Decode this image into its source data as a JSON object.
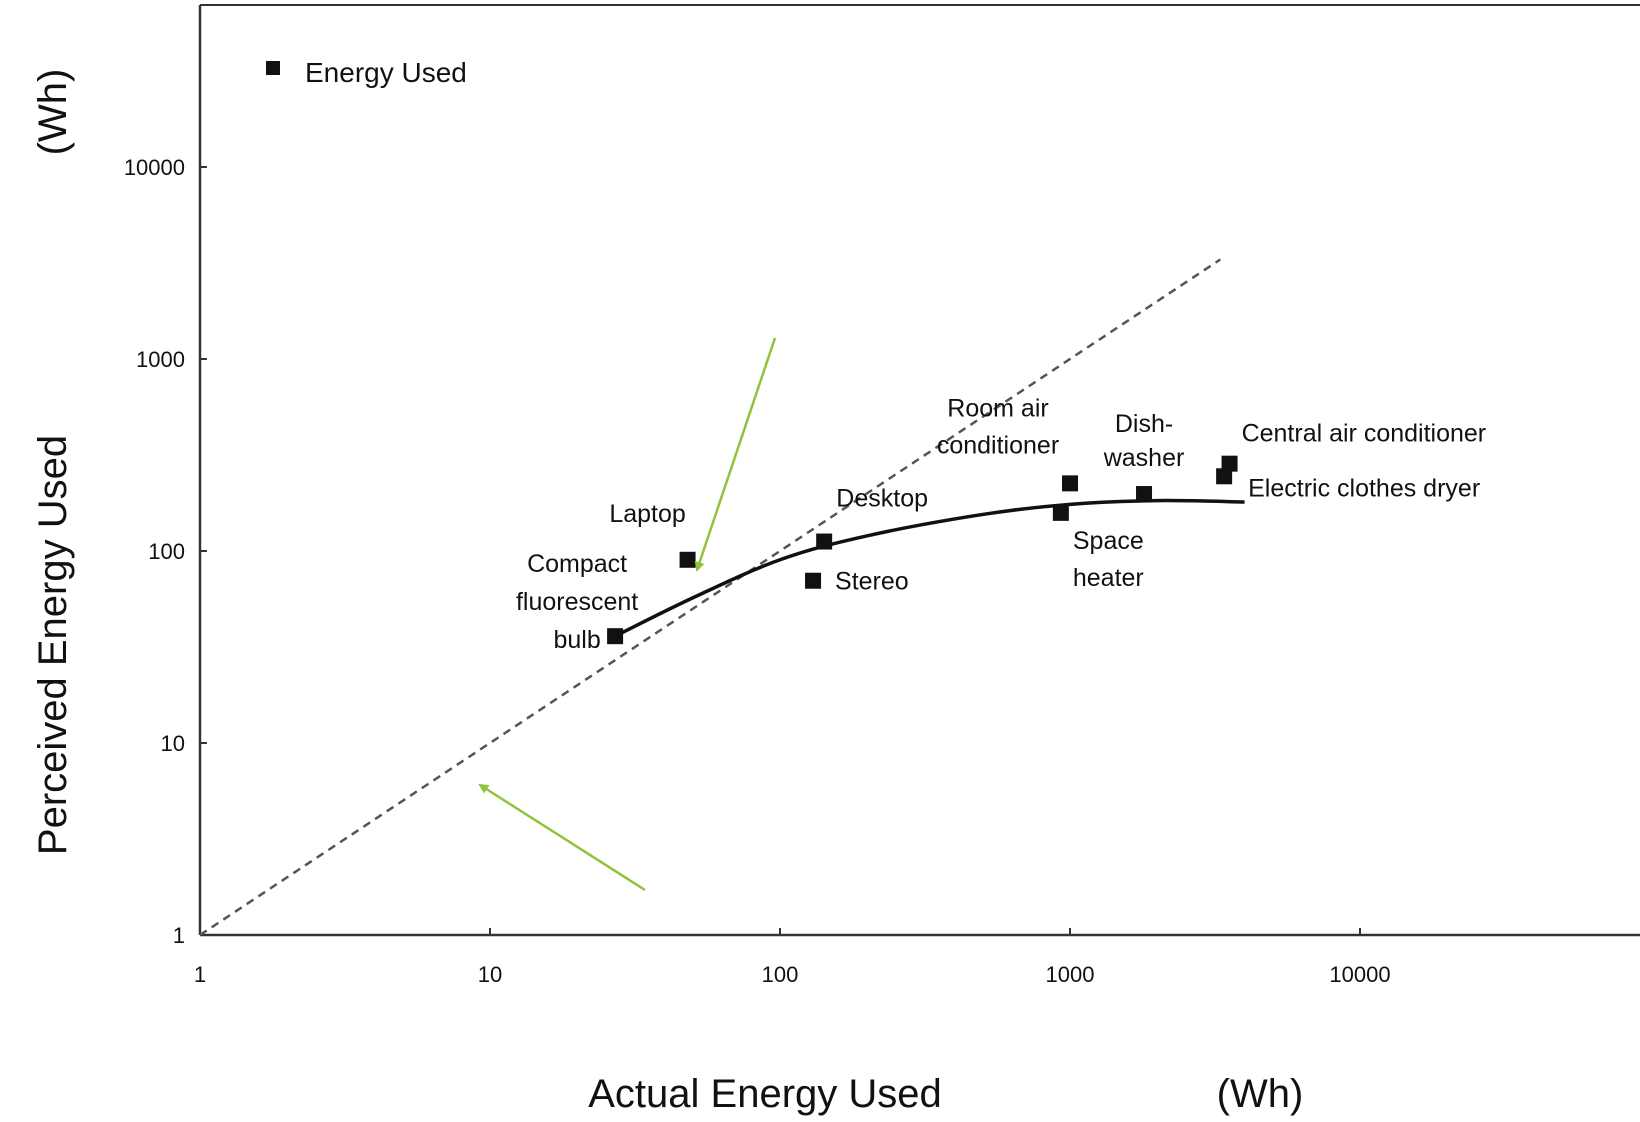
{
  "chart_data": {
    "type": "scatter",
    "x_scale": "log",
    "y_scale": "log",
    "xlim": [
      1,
      60000
    ],
    "ylim": [
      1,
      100000
    ],
    "x_ticks": [
      1,
      10,
      100,
      1000,
      10000
    ],
    "x_tick_labels": [
      "1",
      "10",
      "100",
      "1000",
      "10000"
    ],
    "y_ticks": [
      1,
      10,
      100,
      1000,
      10000
    ],
    "y_tick_labels": [
      "1",
      "10",
      "100",
      "1000",
      "10000"
    ],
    "xlabel": "Actual Energy Used",
    "xlabel_unit": "(Wh)",
    "ylabel": "Perceived Energy Used",
    "ylabel_unit": "(Wh)",
    "legend": {
      "position": "top-left",
      "label": "Energy Used"
    },
    "series": [
      {
        "name": "Energy Used",
        "points": [
          {
            "label": [
              "Compact",
              "fluorescent",
              "bulb"
            ],
            "x": 27,
            "y": 36
          },
          {
            "label": [
              "Laptop"
            ],
            "x": 48,
            "y": 90
          },
          {
            "label": [
              "Stereo"
            ],
            "x": 130,
            "y": 70
          },
          {
            "label": [
              "Desktop"
            ],
            "x": 142,
            "y": 112
          },
          {
            "label": [
              "Space",
              "heater"
            ],
            "x": 930,
            "y": 158
          },
          {
            "label": [
              "Room air",
              "conditioner"
            ],
            "x": 1000,
            "y": 225
          },
          {
            "label": [
              "Dish-",
              "washer"
            ],
            "x": 1800,
            "y": 198
          },
          {
            "label": [
              "Electric clothes dryer"
            ],
            "x": 3400,
            "y": 245
          },
          {
            "label": [
              "Central air conditioner"
            ],
            "x": 3550,
            "y": 285
          }
        ]
      }
    ],
    "reference_line": {
      "style": "dashed",
      "from": [
        1,
        1
      ],
      "to": [
        3300,
        3300
      ]
    },
    "fit_curve": {
      "style": "solid",
      "points": [
        [
          27,
          36
        ],
        [
          50,
          57
        ],
        [
          100,
          90
        ],
        [
          200,
          120
        ],
        [
          500,
          155
        ],
        [
          1000,
          175
        ],
        [
          2000,
          183
        ],
        [
          4000,
          180
        ]
      ]
    },
    "annotations": [
      {
        "type": "arrow",
        "color": "#8fc33a",
        "points_to": "Laptop"
      },
      {
        "type": "arrow",
        "color": "#8fc33a",
        "points_to": "dashed line near 10"
      }
    ]
  }
}
